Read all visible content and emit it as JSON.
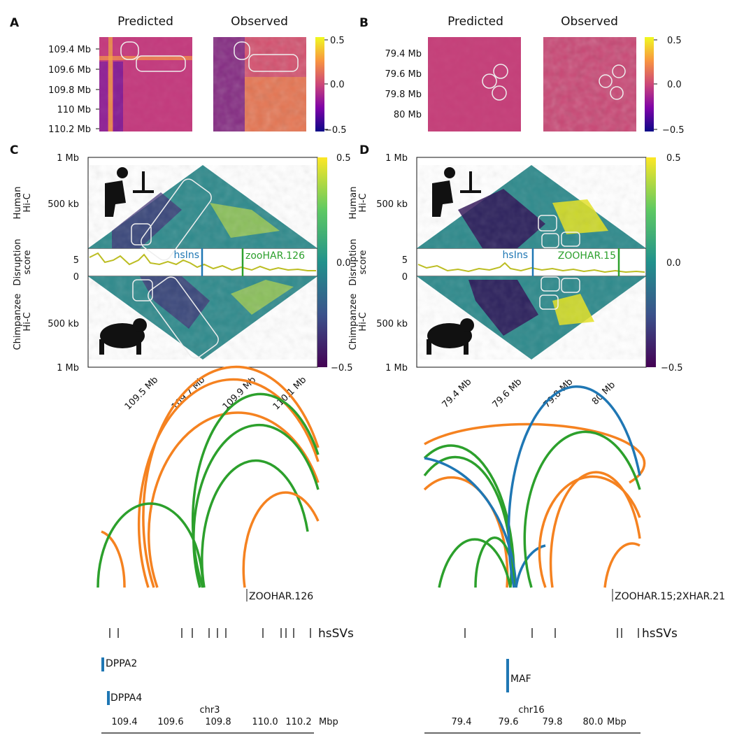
{
  "panels": {
    "a": {
      "letter": "A",
      "title_predicted": "Predicted",
      "title_observed": "Observed",
      "yticks": [
        "109.4 Mb",
        "109.6 Mb",
        "109.8 Mb",
        "110 Mb",
        "110.2 Mb"
      ],
      "colorbar_ticks": [
        "0.5",
        "0.0",
        "−0.5"
      ]
    },
    "b": {
      "letter": "B",
      "title_predicted": "Predicted",
      "title_observed": "Observed",
      "yticks": [
        "79.4 Mb",
        "79.6 Mb",
        "79.8 Mb",
        "80 Mb"
      ],
      "colorbar_ticks": [
        "0.5",
        "0.0",
        "−0.5"
      ]
    },
    "c": {
      "letter": "C",
      "ylabel_human": "Human\nHi-C",
      "ylabel_disruption": "Disruption\nscore",
      "ylabel_chimp": "Chimpanzee\nHi-C",
      "dist_ticks": [
        "1 Mb",
        "500 kb",
        "1 Mb",
        "500 kb"
      ],
      "score_ticks": [
        "5",
        "0"
      ],
      "marker_ins": "hsIns",
      "marker_har": "zooHAR.126",
      "xticks": [
        "109.5 Mb",
        "109.7 Mb",
        "109.9 Mb",
        "110.1 Mb"
      ],
      "colorbar_ticks": [
        "0.5",
        "0.0",
        "−0.5"
      ]
    },
    "d": {
      "letter": "D",
      "ylabel_human": "Human\nHi-C",
      "ylabel_disruption": "Disruption\nscore",
      "ylabel_chimp": "Chimpanzee\nHi-C",
      "dist_ticks": [
        "1 Mb",
        "500 kb",
        "1 Mb",
        "500 kb"
      ],
      "score_ticks": [
        "5",
        "0"
      ],
      "marker_ins": "hsIns",
      "marker_har": "ZOOHAR.15",
      "xticks": [
        "79.4 Mb",
        "79.6 Mb",
        "79.8 Mb",
        "80 Mb"
      ],
      "colorbar_ticks": [
        "0.5",
        "0.0",
        "−0.5"
      ]
    }
  },
  "tracks": {
    "left": {
      "har_label": "ZOOHAR.126",
      "svs_label": "hsSVs",
      "genes": [
        "DPPA2",
        "DPPA4"
      ],
      "chrom": "chr3",
      "axis_ticks": [
        "109.4",
        "109.6",
        "109.8",
        "110.0",
        "110.2"
      ],
      "unit": "Mbp"
    },
    "right": {
      "har_label": "ZOOHAR.15;2XHAR.21",
      "svs_label": "hsSVs",
      "genes": [
        "MAF"
      ],
      "chrom": "chr16",
      "axis_ticks": [
        "79.4",
        "79.6",
        "79.8",
        "80.0"
      ],
      "unit": "Mbp"
    }
  },
  "colors": {
    "arc_orange": "#f58220",
    "arc_green": "#2ca02c",
    "arc_blue": "#1f77b4",
    "marker_blue": "#1f77b4",
    "marker_green": "#2ca02c",
    "score_line": "#bcbd22"
  },
  "chart_data": [
    {
      "type": "heatmap",
      "title": "Predicted / Observed contact maps (A)",
      "units": "chr3",
      "color_range": [
        -0.5,
        0.5
      ],
      "y_range_mb": [
        109.3,
        110.25
      ]
    },
    {
      "type": "heatmap",
      "title": "Predicted / Observed contact maps (B)",
      "units": "chr16",
      "color_range": [
        -0.5,
        0.5
      ],
      "y_range_mb": [
        79.25,
        80.1
      ]
    },
    {
      "type": "line",
      "title": "Disruption score (C)",
      "ylim": [
        0,
        6
      ],
      "x_mb": [
        109.36,
        109.43,
        109.5,
        109.57,
        109.64,
        109.71,
        109.78,
        109.85,
        109.92,
        109.99,
        110.06,
        110.13,
        110.2
      ],
      "values": [
        3.1,
        4.7,
        2.4,
        4.5,
        3.3,
        2.7,
        4.6,
        2.0,
        2.6,
        1.7,
        2.3,
        1.5,
        1.3
      ]
    },
    {
      "type": "line",
      "title": "Disruption score (D)",
      "ylim": [
        0,
        6
      ],
      "x_mb": [
        79.24,
        79.34,
        79.44,
        79.54,
        79.64,
        79.74,
        79.84,
        79.94,
        80.04,
        80.14
      ],
      "values": [
        1.8,
        1.0,
        1.2,
        0.9,
        1.7,
        1.1,
        1.3,
        0.8,
        1.0,
        0.8
      ]
    }
  ]
}
